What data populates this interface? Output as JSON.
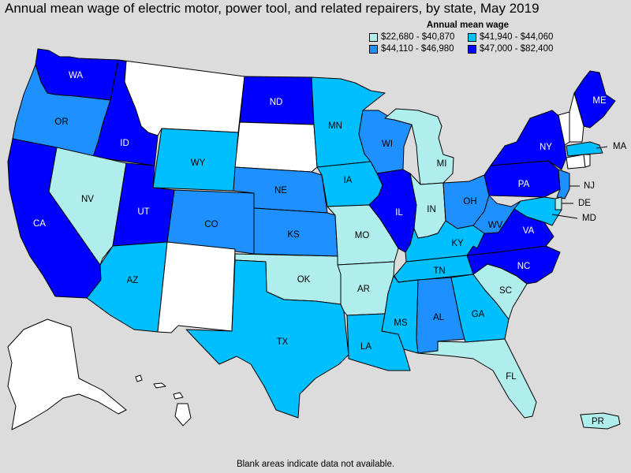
{
  "title": "Annual mean wage of electric motor, power tool, and related repairers, by state, May 2019",
  "legend": {
    "title": "Annual mean wage",
    "classes": [
      {
        "range": "$22,680 - $40,870",
        "color": "#b0eeee"
      },
      {
        "range": "$41,940 - $44,060",
        "color": "#00bfff"
      },
      {
        "range": "$44,110 - $46,980",
        "color": "#1e90ff"
      },
      {
        "range": "$47,000 - $82,400",
        "color": "#0000ff"
      }
    ]
  },
  "footnote": "Blank areas indicate data not available.",
  "no_data_color": "#ffffff",
  "background_color": "#dcdcdc",
  "states": [
    {
      "abbr": "WA",
      "class": 3
    },
    {
      "abbr": "OR",
      "class": 2
    },
    {
      "abbr": "CA",
      "class": 3
    },
    {
      "abbr": "ID",
      "class": 3
    },
    {
      "abbr": "NV",
      "class": 0
    },
    {
      "abbr": "UT",
      "class": 3
    },
    {
      "abbr": "AZ",
      "class": 1
    },
    {
      "abbr": "MT",
      "class": null
    },
    {
      "abbr": "WY",
      "class": 1
    },
    {
      "abbr": "CO",
      "class": 2
    },
    {
      "abbr": "NM",
      "class": null
    },
    {
      "abbr": "ND",
      "class": 3
    },
    {
      "abbr": "SD",
      "class": null
    },
    {
      "abbr": "NE",
      "class": 2
    },
    {
      "abbr": "KS",
      "class": 2
    },
    {
      "abbr": "OK",
      "class": 0
    },
    {
      "abbr": "TX",
      "class": 1
    },
    {
      "abbr": "MN",
      "class": 1
    },
    {
      "abbr": "IA",
      "class": 1
    },
    {
      "abbr": "MO",
      "class": 0
    },
    {
      "abbr": "AR",
      "class": 0
    },
    {
      "abbr": "LA",
      "class": 1
    },
    {
      "abbr": "WI",
      "class": 2
    },
    {
      "abbr": "IL",
      "class": 3
    },
    {
      "abbr": "MI",
      "class": 0
    },
    {
      "abbr": "IN",
      "class": 0
    },
    {
      "abbr": "OH",
      "class": 2
    },
    {
      "abbr": "KY",
      "class": 1
    },
    {
      "abbr": "TN",
      "class": 1
    },
    {
      "abbr": "MS",
      "class": 1
    },
    {
      "abbr": "AL",
      "class": 2
    },
    {
      "abbr": "GA",
      "class": 1
    },
    {
      "abbr": "FL",
      "class": 0
    },
    {
      "abbr": "SC",
      "class": 0
    },
    {
      "abbr": "NC",
      "class": 3
    },
    {
      "abbr": "VA",
      "class": 3
    },
    {
      "abbr": "WV",
      "class": 2
    },
    {
      "abbr": "PA",
      "class": 3
    },
    {
      "abbr": "NY",
      "class": 3
    },
    {
      "abbr": "NJ",
      "class": 2
    },
    {
      "abbr": "DE",
      "class": 0
    },
    {
      "abbr": "MD",
      "class": 1
    },
    {
      "abbr": "MA",
      "class": 1
    },
    {
      "abbr": "ME",
      "class": 3
    },
    {
      "abbr": "VT",
      "class": null
    },
    {
      "abbr": "NH",
      "class": null
    },
    {
      "abbr": "CT",
      "class": null
    },
    {
      "abbr": "RI",
      "class": null
    },
    {
      "abbr": "AK",
      "class": null
    },
    {
      "abbr": "HI",
      "class": null
    },
    {
      "abbr": "PR",
      "class": 0
    }
  ]
}
